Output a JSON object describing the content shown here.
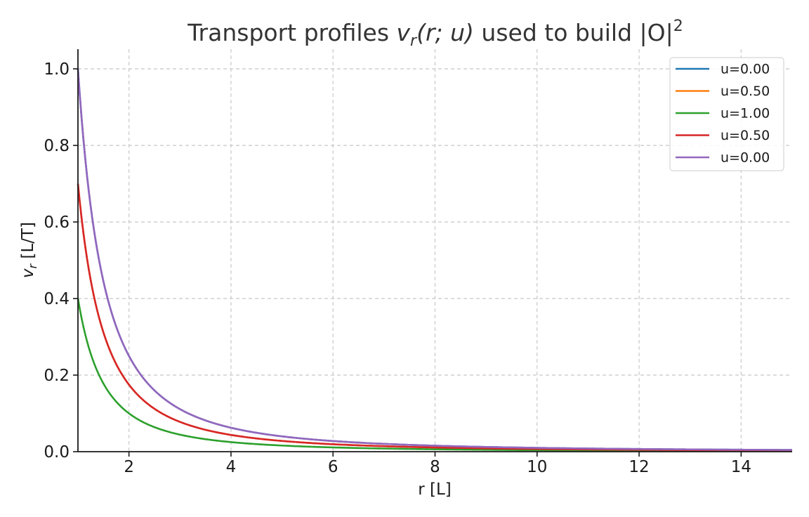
{
  "chart_data": {
    "type": "line",
    "title": "Transport profiles v_r(r; u) used to build |O|^2",
    "title_parts": {
      "prefix": "Transport profiles ",
      "v": "v",
      "r_sub": "r",
      "args": "(r; u)",
      "middle": " used to build |O|",
      "sup": "2"
    },
    "xlabel": "r [L]",
    "ylabel": "v_r [L/T]",
    "ylabel_parts": {
      "v": "v",
      "sub": "r",
      "rest": " [L/T]"
    },
    "xlim": [
      1,
      15
    ],
    "ylim": [
      0,
      1.05
    ],
    "xticks": [
      2,
      4,
      6,
      8,
      10,
      12,
      14
    ],
    "xtick_labels": [
      "2",
      "4",
      "6",
      "8",
      "10",
      "12",
      "14"
    ],
    "yticks": [
      0,
      0.2,
      0.4,
      0.6,
      0.8,
      1.0
    ],
    "ytick_labels": [
      "0.0",
      "0.2",
      "0.4",
      "0.6",
      "0.8",
      "1.0"
    ],
    "grid": true,
    "legend_position": "top-right",
    "x": [
      1,
      1.5,
      2,
      2.5,
      3,
      4,
      5,
      6,
      7,
      8,
      9,
      10,
      11,
      12,
      13,
      14,
      15
    ],
    "series": [
      {
        "name": "u=0.00",
        "color": "#1f77b4",
        "values": [
          1.0,
          0.444,
          0.25,
          0.16,
          0.111,
          0.0625,
          0.04,
          0.0278,
          0.0204,
          0.0156,
          0.0123,
          0.01,
          0.0083,
          0.0069,
          0.0059,
          0.0051,
          0.0044
        ]
      },
      {
        "name": "u=0.50",
        "color": "#ff7f0e",
        "values": [
          0.7,
          0.311,
          0.175,
          0.112,
          0.0778,
          0.0438,
          0.028,
          0.0194,
          0.0143,
          0.0109,
          0.0086,
          0.007,
          0.0058,
          0.0049,
          0.0041,
          0.0036,
          0.0031
        ]
      },
      {
        "name": "u=1.00",
        "color": "#2ca02c",
        "values": [
          0.4,
          0.178,
          0.1,
          0.064,
          0.0444,
          0.025,
          0.016,
          0.0111,
          0.0082,
          0.0063,
          0.0049,
          0.004,
          0.0033,
          0.0028,
          0.0024,
          0.002,
          0.0018
        ]
      },
      {
        "name": "u=0.50",
        "color": "#d62728",
        "values": [
          0.7,
          0.311,
          0.175,
          0.112,
          0.0778,
          0.0438,
          0.028,
          0.0194,
          0.0143,
          0.0109,
          0.0086,
          0.007,
          0.0058,
          0.0049,
          0.0041,
          0.0036,
          0.0031
        ]
      },
      {
        "name": "u=0.00",
        "color": "#9467bd",
        "values": [
          1.0,
          0.444,
          0.25,
          0.16,
          0.111,
          0.0625,
          0.04,
          0.0278,
          0.0204,
          0.0156,
          0.0123,
          0.01,
          0.0083,
          0.0069,
          0.0059,
          0.0051,
          0.0044
        ]
      }
    ]
  }
}
